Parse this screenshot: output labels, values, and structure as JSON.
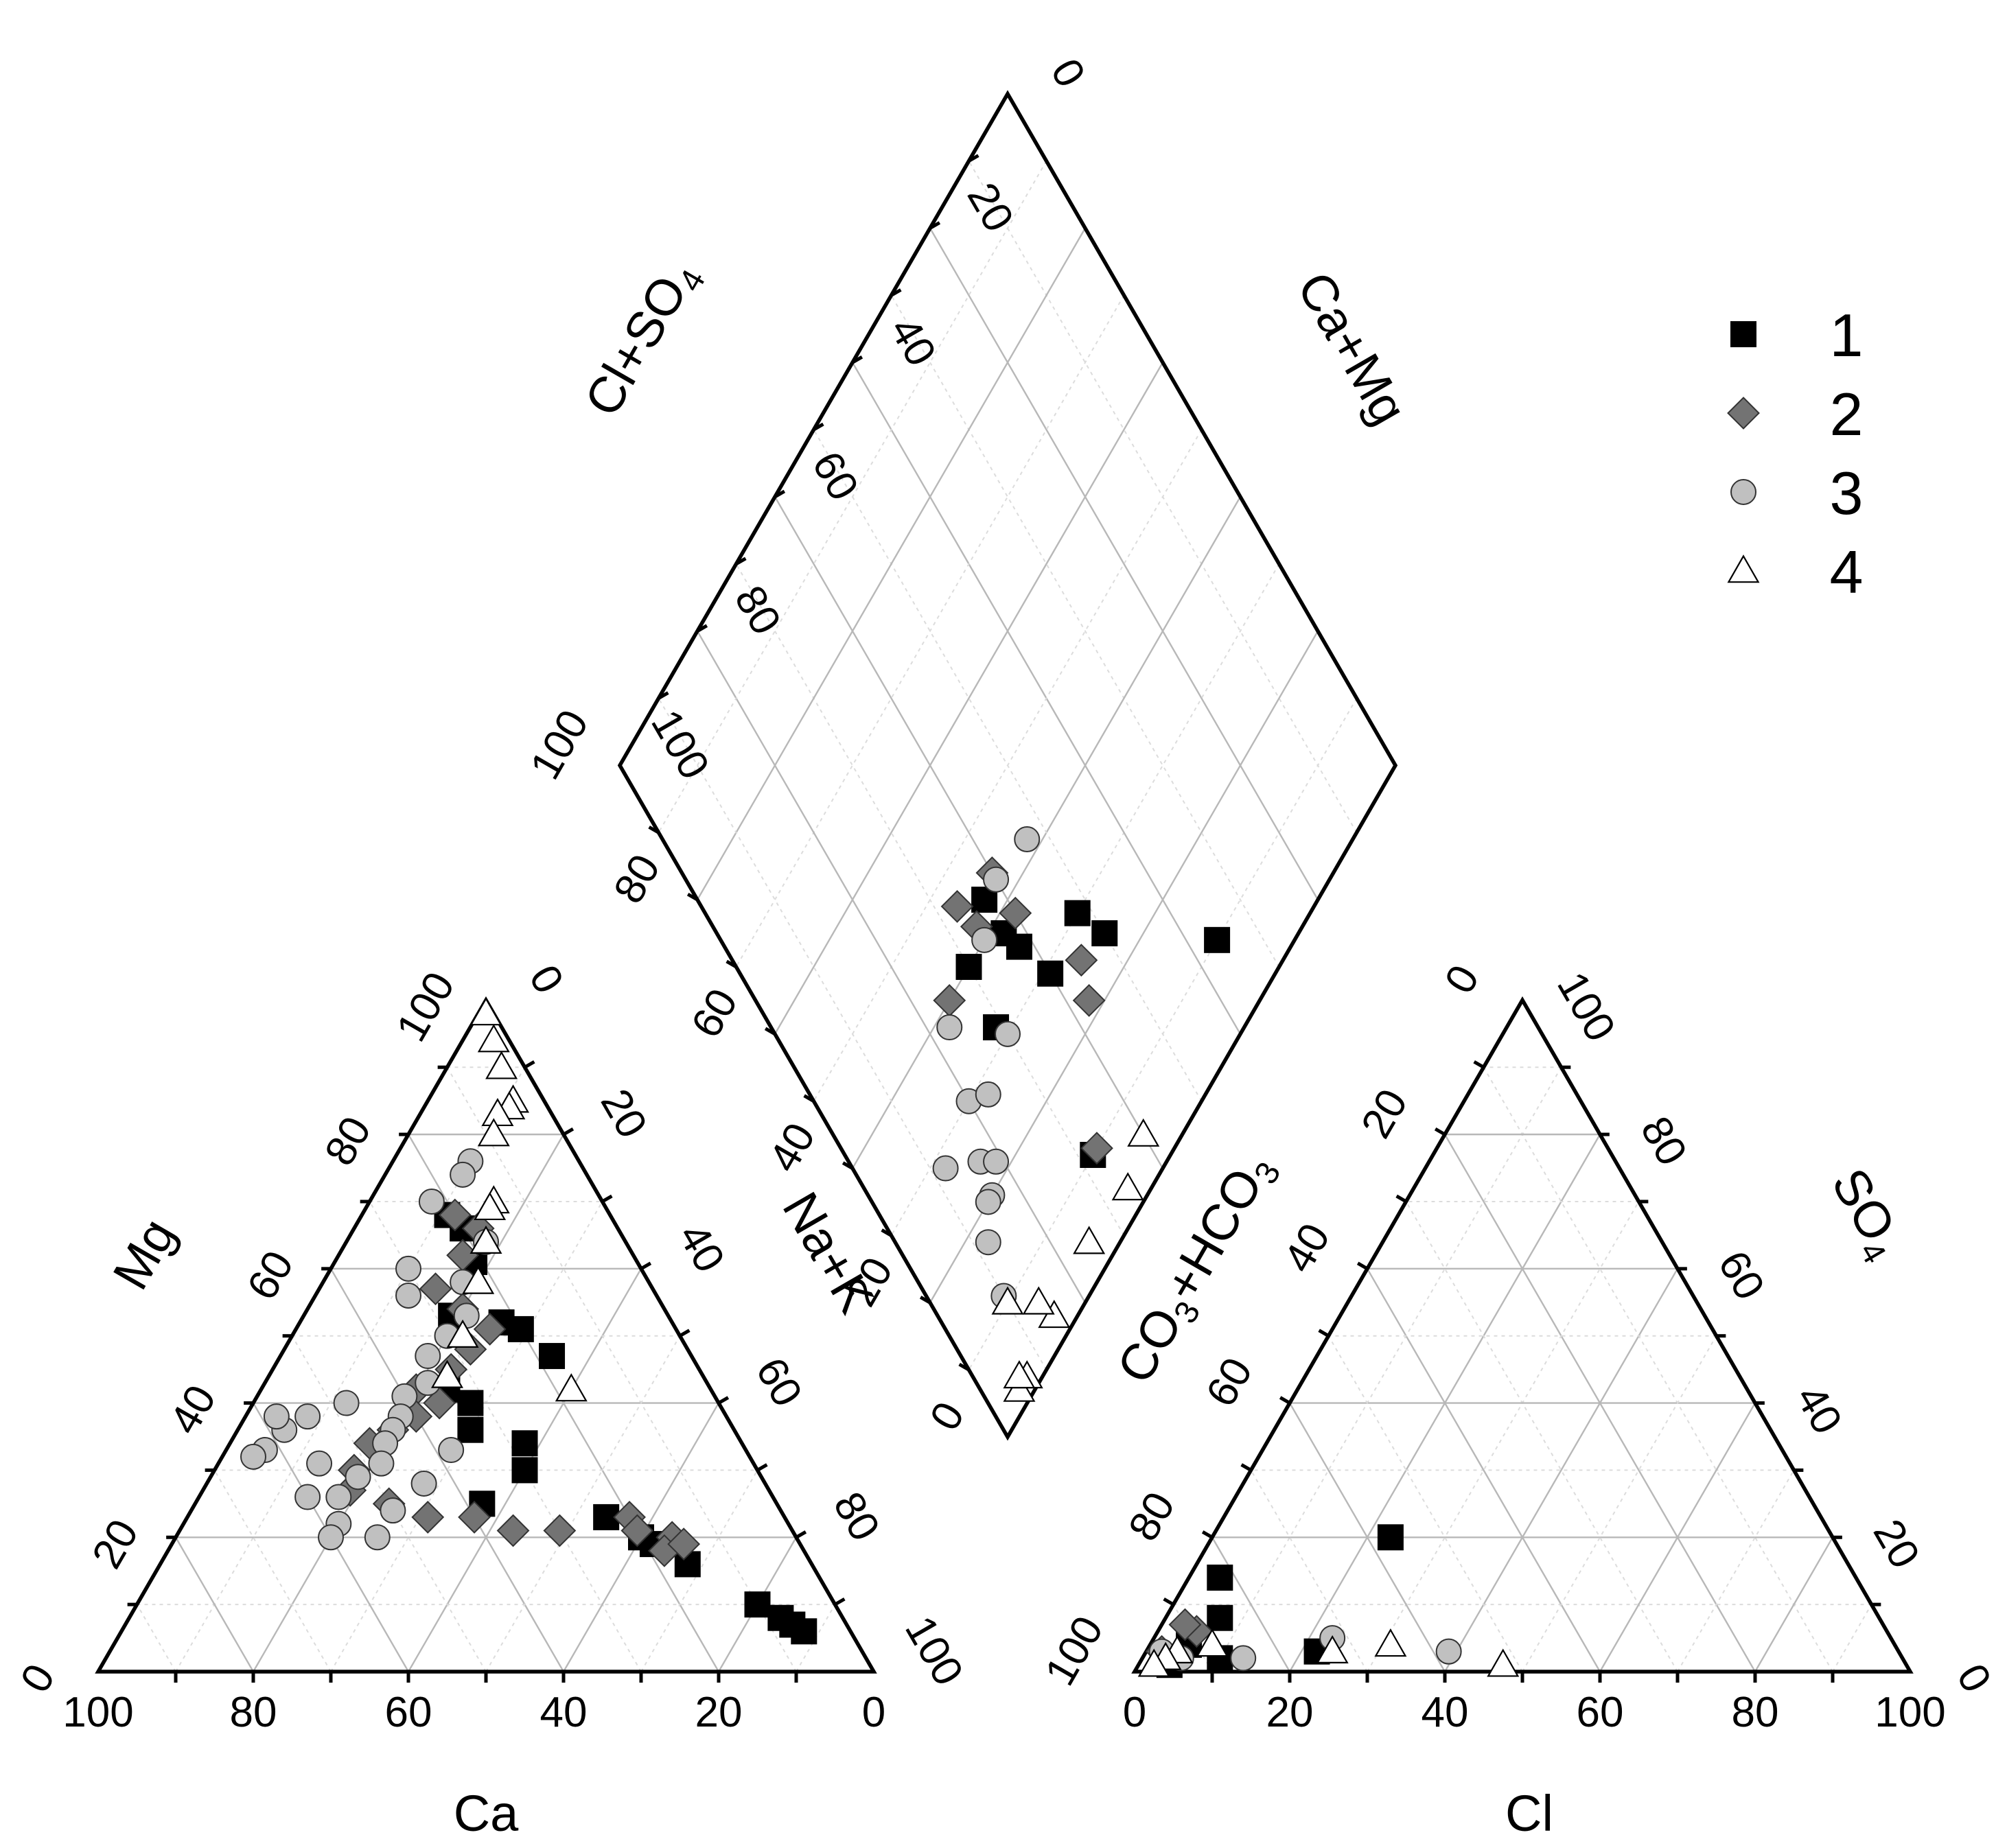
{
  "chart_data": {
    "type": "scatter",
    "subtype": "piper-trilinear",
    "title": "",
    "legend": {
      "placement": "top-right",
      "labels": [
        "1",
        "2",
        "3",
        "4"
      ]
    },
    "axes": {
      "cation": {
        "bottom": "Ca",
        "left": "Mg",
        "right": "Na+K"
      },
      "anion": {
        "bottom": "Cl",
        "left": "CO3+HCO3",
        "right": "SO4"
      },
      "diamond": {
        "left": "Cl+SO4",
        "right": "Ca+Mg"
      },
      "ticks": [
        "0",
        "20",
        "40",
        "60",
        "80",
        "100"
      ],
      "range": [
        0,
        100
      ]
    },
    "axis_text": {
      "ca": "Ca",
      "mg": "Mg",
      "nak": "Na+K",
      "cl": "Cl",
      "so4": "SO",
      "so4_sub": "4",
      "hco3_a": "CO",
      "hco3_sub1": "3",
      "hco3_b": "+HCO",
      "hco3_sub2": "3",
      "clso4": "Cl+SO",
      "clso4_sub": "4",
      "camg": "Ca+Mg"
    },
    "series": [
      {
        "name": "1",
        "marker": "square",
        "color": "#000000",
        "cations": [
          [
            21,
            68,
            11
          ],
          [
            20,
            66,
            14
          ],
          [
            21,
            61,
            18
          ],
          [
            28,
            53,
            19
          ],
          [
            22,
            52,
            26
          ],
          [
            20,
            51,
            29
          ],
          [
            18,
            47,
            35
          ],
          [
            34,
            42,
            24
          ],
          [
            32,
            40,
            28
          ],
          [
            34,
            36,
            30
          ],
          [
            28,
            34,
            38
          ],
          [
            30,
            30,
            40
          ],
          [
            38,
            25,
            37
          ],
          [
            23,
            23,
            54
          ],
          [
            20,
            20,
            60
          ],
          [
            19,
            19,
            62
          ],
          [
            16,
            16,
            68
          ],
          [
            10,
            10,
            80
          ],
          [
            8,
            8,
            84
          ],
          [
            7,
            7,
            86
          ],
          [
            6,
            6,
            88
          ]
        ],
        "anions": [
          [
            57,
            20,
            23
          ],
          [
            75,
            3,
            22
          ],
          [
            82,
            14,
            4
          ],
          [
            85,
            8,
            7
          ],
          [
            91,
            4,
            5
          ],
          [
            88,
            2,
            10
          ],
          [
            95,
            1,
            4
          ]
        ],
        "diamond": [
          [
            64,
            10
          ],
          [
            32,
            10
          ],
          [
            50,
            25
          ],
          [
            48,
            30
          ],
          [
            38,
            35
          ],
          [
            37,
            38
          ],
          [
            30,
            40
          ],
          [
            37,
            43
          ],
          [
            29,
            32
          ],
          [
            40,
            29
          ]
        ]
      },
      {
        "name": "2",
        "marker": "diamond",
        "color": "#737373",
        "cations": [
          [
            20,
            68,
            12
          ],
          [
            18,
            66,
            16
          ],
          [
            22,
            62,
            16
          ],
          [
            28,
            57,
            15
          ],
          [
            26,
            54,
            20
          ],
          [
            24,
            51,
            25
          ],
          [
            28,
            48,
            24
          ],
          [
            32,
            45,
            23
          ],
          [
            38,
            42,
            20
          ],
          [
            36,
            40,
            24
          ],
          [
            40,
            38,
            22
          ],
          [
            44,
            36,
            20
          ],
          [
            48,
            34,
            18
          ],
          [
            52,
            30,
            18
          ],
          [
            54,
            27,
            19
          ],
          [
            50,
            25,
            25
          ],
          [
            46,
            23,
            31
          ],
          [
            40,
            23,
            37
          ],
          [
            36,
            21,
            43
          ],
          [
            30,
            21,
            49
          ],
          [
            20,
            23,
            57
          ],
          [
            16,
            20,
            64
          ],
          [
            18,
            18,
            64
          ],
          [
            20,
            21,
            59
          ],
          [
            15,
            19,
            66
          ]
        ],
        "anions": [
          [
            89,
            6,
            5
          ],
          [
            90,
            7,
            3
          ],
          [
            95,
            3,
            2
          ]
        ],
        "diamond": [
          [
            33,
            10
          ],
          [
            43,
            22
          ],
          [
            45,
            26
          ],
          [
            40,
            38
          ],
          [
            34,
            42
          ],
          [
            40,
            44
          ],
          [
            33,
            46
          ],
          [
            25,
            40
          ]
        ]
      },
      {
        "name": "3",
        "marker": "circle",
        "color": "#c0c0c0",
        "cations": [
          [
            14,
            76,
            10
          ],
          [
            16,
            74,
            10
          ],
          [
            22,
            70,
            8
          ],
          [
            18,
            64,
            18
          ],
          [
            30,
            60,
            10
          ],
          [
            24,
            58,
            18
          ],
          [
            32,
            56,
            12
          ],
          [
            26,
            53,
            21
          ],
          [
            30,
            50,
            20
          ],
          [
            34,
            47,
            19
          ],
          [
            36,
            43,
            21
          ],
          [
            40,
            41,
            19
          ],
          [
            42,
            38,
            20
          ],
          [
            44,
            36,
            20
          ],
          [
            46,
            34,
            20
          ],
          [
            48,
            31,
            21
          ],
          [
            52,
            29,
            19
          ],
          [
            56,
            26,
            18
          ],
          [
            58,
            22,
            20
          ],
          [
            60,
            20,
            20
          ],
          [
            62,
            33,
            5
          ],
          [
            58,
            36,
            6
          ],
          [
            56,
            31,
            13
          ],
          [
            60,
            26,
            14
          ],
          [
            50,
            24,
            26
          ],
          [
            54,
            20,
            26
          ],
          [
            64,
            32,
            4
          ],
          [
            48,
            40,
            12
          ],
          [
            44,
            28,
            28
          ],
          [
            38,
            33,
            29
          ],
          [
            58,
            38,
            4
          ],
          [
            54,
            38,
            8
          ]
        ],
        "anions": [
          [
            58,
            3,
            39
          ],
          [
            72,
            5,
            23
          ],
          [
            85,
            2,
            13
          ],
          [
            93,
            2,
            5
          ],
          [
            95,
            3,
            2
          ]
        ],
        "diamond": [
          [
            30,
            30
          ],
          [
            20,
            30
          ],
          [
            12,
            28
          ],
          [
            16,
            20
          ],
          [
            10,
            11
          ],
          [
            12,
            17
          ],
          [
            17,
            24
          ],
          [
            23,
            38
          ],
          [
            40,
            43
          ],
          [
            34,
            40
          ],
          [
            47,
            42
          ],
          [
            23,
            28
          ],
          [
            19,
            22
          ],
          [
            15,
            20
          ]
        ]
      },
      {
        "name": "4",
        "marker": "triangle",
        "color": "#ffffff",
        "cations": [
          [
            1,
            98,
            1
          ],
          [
            2,
            94,
            4
          ],
          [
            3,
            90,
            7
          ],
          [
            4,
            85,
            11
          ],
          [
            5,
            84,
            11
          ],
          [
            7,
            83,
            10
          ],
          [
            9,
            80,
            11
          ],
          [
            14,
            70,
            16
          ],
          [
            15,
            69,
            16
          ],
          [
            18,
            64,
            18
          ],
          [
            22,
            58,
            20
          ],
          [
            28,
            50,
            22
          ],
          [
            33,
            44,
            23
          ],
          [
            18,
            42,
            40
          ]
        ],
        "anions": [
          [
            52,
            1,
            47
          ],
          [
            65,
            4,
            31
          ],
          [
            73,
            3,
            24
          ],
          [
            88,
            4,
            8
          ],
          [
            93,
            3,
            4
          ],
          [
            95,
            2,
            3
          ],
          [
            97,
            1,
            2
          ]
        ],
        "diamond": [
          [
            40,
            5
          ],
          [
            34,
            3
          ],
          [
            25,
            4
          ],
          [
            15,
            3
          ],
          [
            14,
            6
          ],
          [
            5,
            2
          ],
          [
            10,
            10
          ],
          [
            7,
            2
          ],
          [
            6,
            3
          ]
        ]
      }
    ]
  }
}
